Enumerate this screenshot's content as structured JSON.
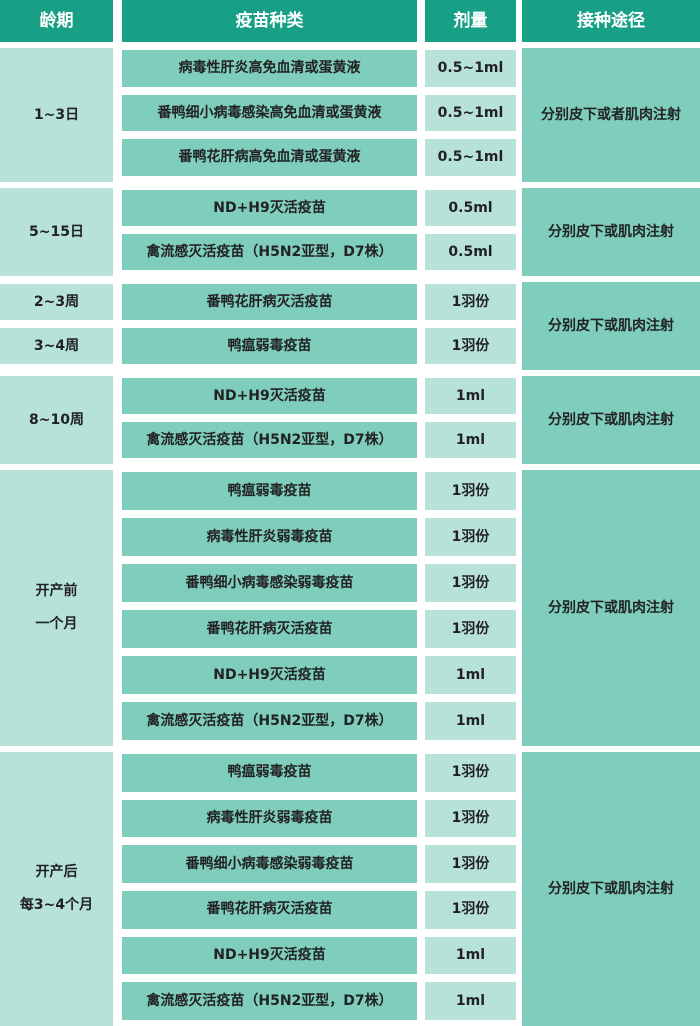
{
  "header": [
    "龄期",
    "疫苗种类",
    "剂量",
    "接种途径"
  ],
  "groups": [
    {
      "ages": [
        [
          "1~3日"
        ]
      ],
      "rows": [
        {
          "vaccine": "病毒性肝炎高免血清或蛋黄液",
          "dose": "0.5~1ml"
        },
        {
          "vaccine": "番鸭细小病毒感染高免血清或蛋黄液",
          "dose": "0.5~1ml"
        },
        {
          "vaccine": "番鸭花肝病高免血清或蛋黄液",
          "dose": "0.5~1ml"
        }
      ],
      "route": "分别皮下或者肌肉注射"
    },
    {
      "ages": [
        [
          "5~15日"
        ]
      ],
      "rows": [
        {
          "vaccine": "ND+H9灭活疫苗",
          "dose": "0.5ml"
        },
        {
          "vaccine": "禽流感灭活疫苗（H5N2亚型，D7株）",
          "dose": "0.5ml"
        }
      ],
      "route": "分别皮下或肌肉注射"
    },
    {
      "ages": [
        [
          "2~3周"
        ],
        [
          "3~4周"
        ]
      ],
      "rows": [
        {
          "vaccine": "番鸭花肝病灭活疫苗",
          "dose": "1羽份"
        },
        {
          "vaccine": "鸭瘟弱毒疫苗",
          "dose": "1羽份"
        }
      ],
      "route": "分别皮下或肌肉注射"
    },
    {
      "ages": [
        [
          "8~10周"
        ]
      ],
      "rows": [
        {
          "vaccine": "ND+H9灭活疫苗",
          "dose": "1ml"
        },
        {
          "vaccine": "禽流感灭活疫苗（H5N2亚型，D7株）",
          "dose": "1ml"
        }
      ],
      "route": "分别皮下或肌肉注射"
    },
    {
      "ages": [
        [
          "开产前",
          "一个月"
        ]
      ],
      "rows": [
        {
          "vaccine": "鸭瘟弱毒疫苗",
          "dose": "1羽份"
        },
        {
          "vaccine": "病毒性肝炎弱毒疫苗",
          "dose": "1羽份"
        },
        {
          "vaccine": "番鸭细小病毒感染弱毒疫苗",
          "dose": "1羽份"
        },
        {
          "vaccine": "番鸭花肝病灭活疫苗",
          "dose": "1羽份"
        },
        {
          "vaccine": "ND+H9灭活疫苗",
          "dose": "1ml"
        },
        {
          "vaccine": "禽流感灭活疫苗（H5N2亚型，D7株）",
          "dose": "1ml"
        }
      ],
      "route": "分别皮下或肌肉注射"
    },
    {
      "ages": [
        [
          "开产后",
          "每3~4个月"
        ]
      ],
      "rows": [
        {
          "vaccine": "鸭瘟弱毒疫苗",
          "dose": "1羽份"
        },
        {
          "vaccine": "病毒性肝炎弱毒疫苗",
          "dose": "1羽份"
        },
        {
          "vaccine": "番鸭细小病毒感染弱毒疫苗",
          "dose": "1羽份"
        },
        {
          "vaccine": "番鸭花肝病灭活疫苗",
          "dose": "1羽份"
        },
        {
          "vaccine": "ND+H9灭活疫苗",
          "dose": "1ml"
        },
        {
          "vaccine": "禽流感灭活疫苗（H5N2亚型，D7株）",
          "dose": "1ml"
        }
      ],
      "route": "分别皮下或肌肉注射"
    }
  ]
}
